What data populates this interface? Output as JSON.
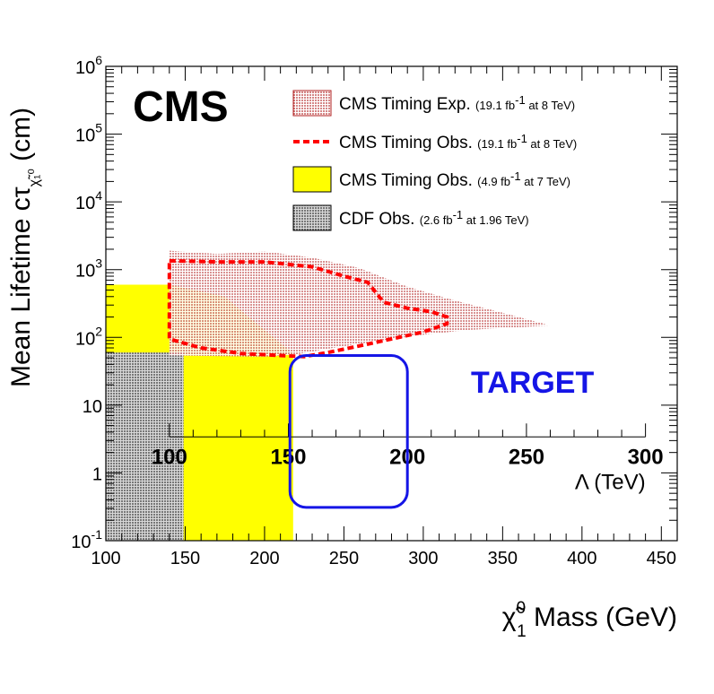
{
  "chart_data": {
    "type": "area",
    "title": "",
    "experiment_label": "CMS",
    "xlabel": "χ̃₁⁰ Mass (GeV)",
    "xlabel_parts": {
      "symbol": "χ̃",
      "superscript": "0",
      "subscript": "1",
      "rest": " Mass (GeV)"
    },
    "ylabel": "Mean Lifetime  cτ (cm)",
    "ylabel_parts": {
      "main": "Mean Lifetime  cτ",
      "subscript": "χ̃₁⁰",
      "rest": " (cm)"
    },
    "xlim": [
      100,
      460
    ],
    "ylim": [
      0.1,
      1000000
    ],
    "yscale": "log",
    "x_ticks": [
      100,
      150,
      200,
      250,
      300,
      350,
      400,
      450
    ],
    "x_tick_labels": [
      "100",
      "150",
      "200",
      "250",
      "300",
      "350",
      "400",
      "450"
    ],
    "y_ticks": [
      {
        "value": 0.1,
        "base": "10",
        "exp": "-1"
      },
      {
        "value": 1,
        "base": "1",
        "exp": ""
      },
      {
        "value": 10,
        "base": "10",
        "exp": ""
      },
      {
        "value": 100,
        "base": "10",
        "exp": "2"
      },
      {
        "value": 1000,
        "base": "10",
        "exp": "3"
      },
      {
        "value": 10000,
        "base": "10",
        "exp": "4"
      },
      {
        "value": 100000,
        "base": "10",
        "exp": "5"
      },
      {
        "value": 1000000,
        "base": "10",
        "exp": "6"
      }
    ],
    "secondary_x_axis": {
      "label": "Λ (TeV)",
      "ticks": [
        100,
        150,
        200,
        250,
        300
      ],
      "tick_labels": [
        "100",
        "150",
        "200",
        "250",
        "300"
      ],
      "mass_at": [
        140,
        440
      ],
      "y_position_value": 3.4
    },
    "series": [
      {
        "name": "CMS Timing Exp.",
        "lumi": "(19.1 fb",
        "lumi_sup": "-1",
        "lumi_rest": " at 8 TeV)",
        "style": "hatched-red",
        "color": "#b22222",
        "upper": [
          [
            140,
            1900
          ],
          [
            170,
            1700
          ],
          [
            200,
            1850
          ],
          [
            230,
            1500
          ],
          [
            260,
            1050
          ],
          [
            290,
            560
          ],
          [
            320,
            350
          ],
          [
            350,
            230
          ],
          [
            380,
            150
          ]
        ],
        "lower": [
          [
            140,
            54
          ],
          [
            170,
            53
          ],
          [
            200,
            52
          ],
          [
            220,
            56
          ],
          [
            240,
            68
          ],
          [
            270,
            88
          ],
          [
            300,
            110
          ],
          [
            330,
            130
          ],
          [
            380,
            150
          ]
        ]
      },
      {
        "name": "CMS Timing Obs.",
        "lumi": "(19.1 fb",
        "lumi_sup": "-1",
        "lumi_rest": " at 8 TeV)",
        "style": "dashed-red",
        "color": "#ff0000",
        "upper": [
          [
            140,
            1350
          ],
          [
            170,
            1300
          ],
          [
            200,
            1300
          ],
          [
            230,
            1100
          ],
          [
            250,
            800
          ],
          [
            265,
            650
          ],
          [
            275,
            330
          ],
          [
            290,
            270
          ],
          [
            305,
            240
          ],
          [
            315,
            200
          ]
        ],
        "lower": [
          [
            140,
            95
          ],
          [
            160,
            70
          ],
          [
            185,
            58
          ],
          [
            210,
            54
          ],
          [
            225,
            52
          ],
          [
            240,
            60
          ],
          [
            260,
            75
          ],
          [
            280,
            95
          ],
          [
            300,
            120
          ],
          [
            315,
            160
          ]
        ]
      },
      {
        "name": "CMS Timing Obs.",
        "lumi": "(4.9 fb",
        "lumi_sup": "-1",
        "lumi_rest": " at 7 TeV)",
        "style": "fill-yellow",
        "color": "#ffff00",
        "polygon": [
          [
            100,
            0.1
          ],
          [
            218,
            0.1
          ],
          [
            218,
            58
          ],
          [
            190,
            200
          ],
          [
            175,
            400
          ],
          [
            140,
            600
          ],
          [
            100,
            600
          ]
        ]
      },
      {
        "name": "CDF Obs.",
        "lumi": "(2.6 fb",
        "lumi_sup": "-1",
        "lumi_rest": " at 1.96 TeV)",
        "style": "hatched-gray",
        "color": "#555555",
        "polygon": [
          [
            100,
            0.1
          ],
          [
            149,
            0.1
          ],
          [
            149,
            60
          ],
          [
            100,
            60
          ]
        ]
      }
    ],
    "annotations": [
      {
        "type": "rounded-box",
        "color": "#1515e6",
        "x0": 216,
        "x1": 290,
        "y0": 0.31,
        "y1": 54
      },
      {
        "type": "text",
        "text": "TARGET",
        "color": "#1515e6",
        "x": 330,
        "y": 22
      }
    ],
    "legend_position": "top-right"
  }
}
